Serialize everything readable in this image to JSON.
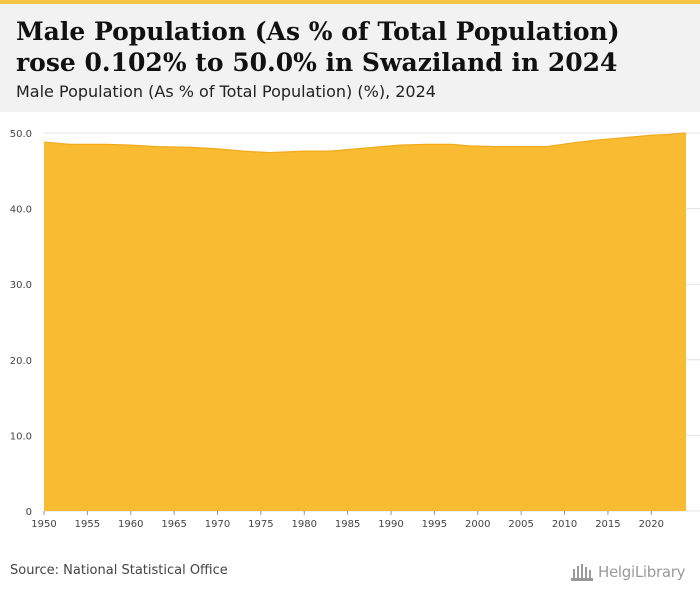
{
  "header": {
    "title": "Male Population (As % of Total Population) rose 0.102% to 50.0% in Swaziland in 2024",
    "subtitle": "Male Population (As % of Total Population) (%), 2024"
  },
  "footer": {
    "source": "Source: National Statistical Office",
    "brand": "HelgiLibrary"
  },
  "colors": {
    "accent": "#f4c542",
    "area_fill": "#f9bb32",
    "grid": "#e3e3e3"
  },
  "chart_data": {
    "type": "area",
    "title": "Male Population (As % of Total Population) (%), 2024",
    "xlabel": "",
    "ylabel": "",
    "xlim": [
      1950,
      2024
    ],
    "ylim": [
      0,
      50
    ],
    "grid": true,
    "y_ticks": [
      0,
      10,
      20,
      30,
      40,
      50
    ],
    "y_tick_labels": [
      "0",
      "10.0",
      "20.0",
      "30.0",
      "40.0",
      "50.0"
    ],
    "x_ticks": [
      1950,
      1955,
      1960,
      1965,
      1970,
      1975,
      1980,
      1985,
      1990,
      1995,
      2000,
      2005,
      2010,
      2015,
      2020
    ],
    "x_tick_labels": [
      "1950",
      "1955",
      "1960",
      "1965",
      "1970",
      "1975",
      "1980",
      "1985",
      "1990",
      "1995",
      "2000",
      "2005",
      "2010",
      "2015",
      "2020"
    ],
    "series": [
      {
        "name": "",
        "x": [
          1950,
          1953,
          1957,
          1960,
          1963,
          1967,
          1970,
          1973,
          1976,
          1978,
          1980,
          1983,
          1985,
          1988,
          1991,
          1994,
          1997,
          1999,
          2002,
          2005,
          2008,
          2011,
          2014,
          2017,
          2020,
          2022,
          2023,
          2024
        ],
        "values": [
          48.8,
          48.5,
          48.5,
          48.4,
          48.2,
          48.1,
          47.9,
          47.6,
          47.4,
          47.5,
          47.6,
          47.6,
          47.8,
          48.1,
          48.4,
          48.5,
          48.5,
          48.3,
          48.2,
          48.2,
          48.2,
          48.7,
          49.1,
          49.4,
          49.7,
          49.8,
          49.9,
          50.0
        ]
      }
    ]
  }
}
